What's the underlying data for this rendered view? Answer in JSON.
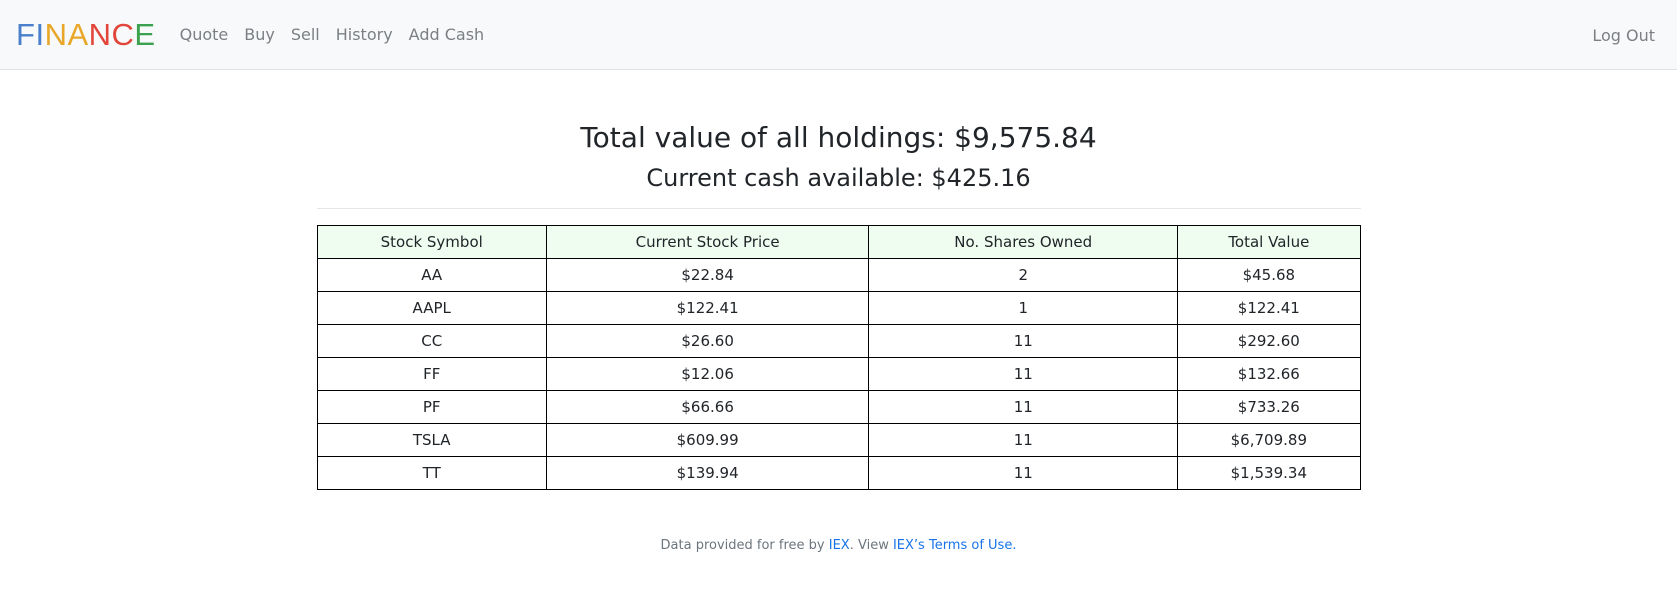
{
  "brand": {
    "letters": [
      {
        "char": "F",
        "color": "#4a7fcb"
      },
      {
        "char": "I",
        "color": "#4a7fcb"
      },
      {
        "char": "N",
        "color": "#e8a728"
      },
      {
        "char": "A",
        "color": "#e8a728"
      },
      {
        "char": "N",
        "color": "#e2463a"
      },
      {
        "char": "C",
        "color": "#e2463a"
      },
      {
        "char": "E",
        "color": "#3aa14f"
      }
    ]
  },
  "nav": {
    "items": [
      "Quote",
      "Buy",
      "Sell",
      "History",
      "Add Cash"
    ],
    "logout": "Log Out"
  },
  "summary": {
    "total": "Total value of all holdings: $9,575.84",
    "cash": "Current cash available: $425.16"
  },
  "table": {
    "headers": [
      "Stock Symbol",
      "Current Stock Price",
      "No. Shares Owned",
      "Total Value"
    ],
    "rows": [
      [
        "AA",
        "$22.84",
        "2",
        "$45.68"
      ],
      [
        "AAPL",
        "$122.41",
        "1",
        "$122.41"
      ],
      [
        "CC",
        "$26.60",
        "11",
        "$292.60"
      ],
      [
        "FF",
        "$12.06",
        "11",
        "$132.66"
      ],
      [
        "PF",
        "$66.66",
        "11",
        "$733.26"
      ],
      [
        "TSLA",
        "$609.99",
        "11",
        "$6,709.89"
      ],
      [
        "TT",
        "$139.94",
        "11",
        "$1,539.34"
      ]
    ]
  },
  "footer": {
    "prefix": "Data provided for free by ",
    "link1": "IEX",
    "middle": ". View ",
    "link2": "IEX’s Terms of Use."
  },
  "colors": {
    "navbar_bg": "#f8f9fa",
    "table_header_bg": "#effdf0",
    "link": "#1a73e8"
  }
}
